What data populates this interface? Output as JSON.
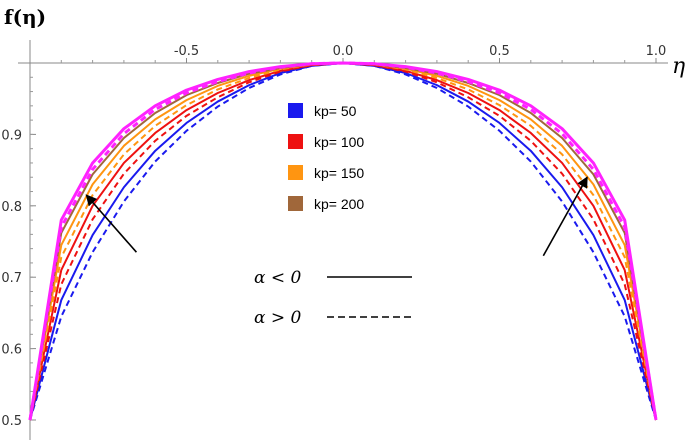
{
  "chart_data": {
    "type": "line",
    "ylabel": "f(η)",
    "xlabel": "η",
    "xlim": [
      -1.0,
      1.0
    ],
    "ylim": [
      0.5,
      1.0
    ],
    "x_ticks": [
      "-0.5",
      "0.0",
      "0.5",
      "1.0"
    ],
    "x_tick_values": [
      -0.5,
      0.0,
      0.5,
      1.0
    ],
    "y_ticks": [
      "0.5",
      "0.6",
      "0.7",
      "0.8",
      "0.9"
    ],
    "y_tick_values": [
      0.5,
      0.6,
      0.7,
      0.8,
      0.9
    ],
    "x": [
      -1.0,
      -0.9,
      -0.8,
      -0.7,
      -0.6,
      -0.5,
      -0.4,
      -0.3,
      -0.2,
      -0.1,
      0.0,
      0.1,
      0.2,
      0.3,
      0.4,
      0.5,
      0.6,
      0.7,
      0.8,
      0.9,
      1.0
    ],
    "series": [
      {
        "name": "kp= 50",
        "color": "#1a1aee",
        "alpha_sign": "α < 0",
        "dash": "solid",
        "values": [
          0.5,
          0.668,
          0.759,
          0.826,
          0.877,
          0.916,
          0.946,
          0.969,
          0.986,
          0.996,
          1.0,
          0.996,
          0.986,
          0.969,
          0.946,
          0.916,
          0.877,
          0.826,
          0.759,
          0.668,
          0.5
        ]
      },
      {
        "name": "kp= 50",
        "color": "#1a1aee",
        "alpha_sign": "α > 0",
        "dash": "dashed",
        "values": [
          0.5,
          0.645,
          0.735,
          0.806,
          0.862,
          0.905,
          0.939,
          0.965,
          0.984,
          0.996,
          1.0,
          0.996,
          0.984,
          0.965,
          0.939,
          0.905,
          0.862,
          0.806,
          0.735,
          0.645,
          0.5
        ]
      },
      {
        "name": "kp= 100",
        "color": "#ee1111",
        "alpha_sign": "α < 0",
        "dash": "solid",
        "values": [
          0.5,
          0.71,
          0.8,
          0.86,
          0.902,
          0.934,
          0.958,
          0.976,
          0.989,
          0.997,
          1.0,
          0.997,
          0.989,
          0.976,
          0.958,
          0.934,
          0.902,
          0.86,
          0.8,
          0.71,
          0.5
        ]
      },
      {
        "name": "kp= 100",
        "color": "#ee1111",
        "alpha_sign": "α > 0",
        "dash": "dashed",
        "values": [
          0.5,
          0.69,
          0.781,
          0.845,
          0.891,
          0.926,
          0.952,
          0.973,
          0.988,
          0.997,
          1.0,
          0.997,
          0.988,
          0.973,
          0.952,
          0.926,
          0.891,
          0.845,
          0.781,
          0.69,
          0.5
        ]
      },
      {
        "name": "kp= 150",
        "color": "#ff9511",
        "alpha_sign": "α < 0",
        "dash": "solid",
        "values": [
          0.5,
          0.745,
          0.83,
          0.884,
          0.921,
          0.948,
          0.968,
          0.982,
          0.992,
          0.998,
          1.0,
          0.998,
          0.992,
          0.982,
          0.968,
          0.948,
          0.921,
          0.884,
          0.83,
          0.745,
          0.5
        ]
      },
      {
        "name": "kp= 150",
        "color": "#ff9511",
        "alpha_sign": "α > 0",
        "dash": "dashed",
        "values": [
          0.5,
          0.728,
          0.815,
          0.872,
          0.912,
          0.941,
          0.963,
          0.979,
          0.991,
          0.998,
          1.0,
          0.998,
          0.991,
          0.979,
          0.963,
          0.941,
          0.912,
          0.872,
          0.815,
          0.728,
          0.5
        ]
      },
      {
        "name": "kp= 200",
        "color": "#a0673a",
        "alpha_sign": "α < 0",
        "dash": "solid",
        "values": [
          0.5,
          0.762,
          0.844,
          0.895,
          0.93,
          0.955,
          0.972,
          0.985,
          0.993,
          0.998,
          1.0,
          0.998,
          0.993,
          0.985,
          0.972,
          0.955,
          0.93,
          0.895,
          0.844,
          0.762,
          0.5
        ]
      },
      {
        "name": "",
        "color": "#ff22ff",
        "alpha_sign": "α < 0",
        "dash": "solid",
        "values": [
          0.5,
          0.78,
          0.86,
          0.908,
          0.94,
          0.962,
          0.977,
          0.988,
          0.995,
          0.999,
          1.0,
          0.999,
          0.995,
          0.988,
          0.977,
          0.962,
          0.94,
          0.908,
          0.86,
          0.78,
          0.5
        ]
      },
      {
        "name": "",
        "color": "#ff22ff",
        "alpha_sign": "α > 0",
        "dash": "dashed",
        "values": [
          0.5,
          0.77,
          0.851,
          0.901,
          0.935,
          0.958,
          0.974,
          0.986,
          0.994,
          0.999,
          1.0,
          0.999,
          0.994,
          0.986,
          0.974,
          0.958,
          0.935,
          0.901,
          0.851,
          0.77,
          0.5
        ]
      }
    ],
    "legend": {
      "placement": "center",
      "entries": [
        {
          "label": "kp= 50",
          "color": "#1a1aee"
        },
        {
          "label": "kp= 100",
          "color": "#ee1111"
        },
        {
          "label": "kp= 150",
          "color": "#ff9511"
        },
        {
          "label": "kp= 200",
          "color": "#a0673a"
        }
      ],
      "line_styles": [
        {
          "label": "α < 0",
          "dash": "solid"
        },
        {
          "label": "α > 0",
          "dash": "dashed"
        }
      ]
    },
    "annotations": [
      {
        "type": "arrow",
        "from": [
          -0.66,
          0.735
        ],
        "to": [
          -0.82,
          0.815
        ]
      },
      {
        "type": "arrow",
        "from": [
          0.64,
          0.73
        ],
        "to": [
          0.78,
          0.84
        ]
      }
    ],
    "grid": false
  }
}
